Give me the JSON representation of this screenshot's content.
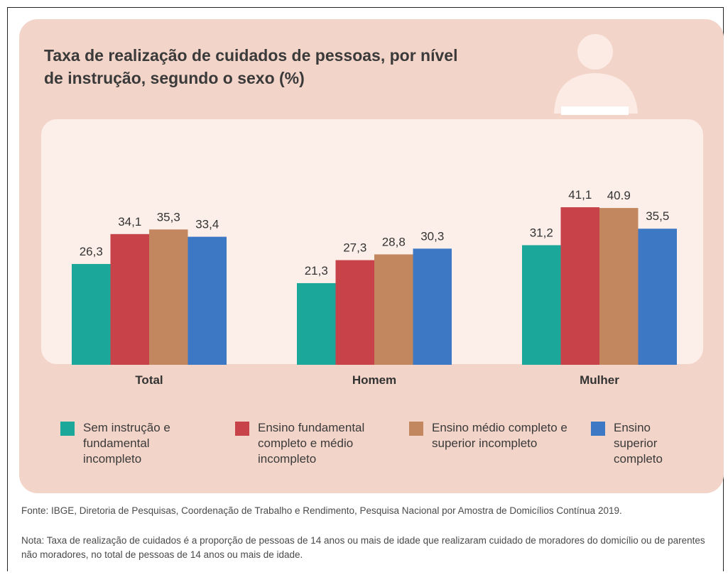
{
  "chart_data": {
    "type": "bar",
    "title": "Taxa de realização de cuidados de pessoas, por nível de instrução, segundo o sexo (%)",
    "categories": [
      "Total",
      "Homem",
      "Mulher"
    ],
    "series": [
      {
        "name": "Sem instrução e fundamental incompleto",
        "color": "#1ba89a",
        "values": [
          26.3,
          21.3,
          31.2
        ],
        "value_labels": [
          "26,3",
          "21,3",
          "31,2"
        ]
      },
      {
        "name": "Ensino fundamental completo e médio incompleto",
        "color": "#c8424a",
        "values": [
          34.1,
          27.3,
          41.1
        ],
        "value_labels": [
          "34,1",
          "27,3",
          "41,1"
        ]
      },
      {
        "name": "Ensino médio completo e superior incompleto",
        "color": "#c2875f",
        "values": [
          35.3,
          28.8,
          40.9
        ],
        "value_labels": [
          "35,3",
          "28,8",
          "40.9"
        ]
      },
      {
        "name": "Ensino superior completo",
        "color": "#3d78c4",
        "values": [
          33.4,
          30.3,
          35.5
        ],
        "value_labels": [
          "33,4",
          "30,3",
          "35,5"
        ]
      }
    ],
    "source": "Fonte: IBGE, Diretoria de Pesquisas, Coordenação de Trabalho e Rendimento, Pesquisa Nacional por Amostra de Domicílios Contínua 2019.",
    "note": "Nota: Taxa de realização de cuidados é a proporção de pessoas de 14 anos ou mais de idade que realizaram cuidado de moradores do domicílio ou de parentes não moradores, no total de pessoas de 14 anos ou mais de idade."
  }
}
